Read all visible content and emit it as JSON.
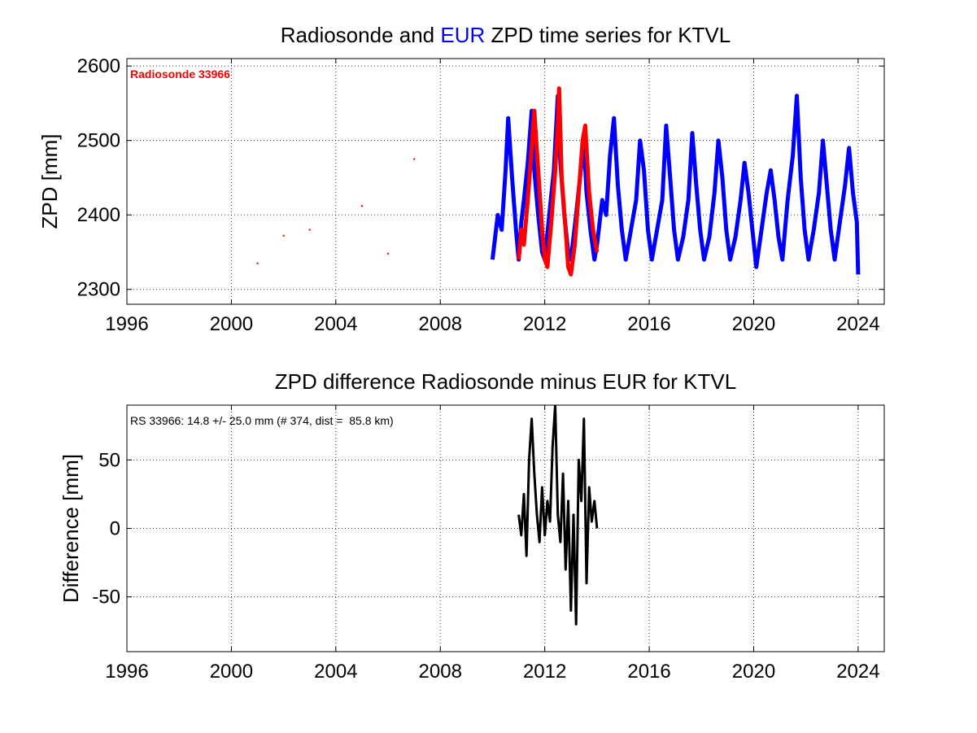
{
  "chart_data": [
    {
      "type": "line",
      "title_parts": [
        {
          "text": "Radiosonde and ",
          "color": "#000000"
        },
        {
          "text": "EUR",
          "color": "#0000ff"
        },
        {
          "text": " ZPD time series for KTVL",
          "color": "#000000"
        }
      ],
      "xlabel": "",
      "ylabel": "ZPD [mm]",
      "xlim": [
        1996,
        2025
      ],
      "ylim": [
        2280,
        2610
      ],
      "xticks": [
        1996,
        2000,
        2004,
        2008,
        2012,
        2016,
        2020,
        2024
      ],
      "yticks": [
        2300,
        2400,
        2500,
        2600
      ],
      "grid": true,
      "annotation": {
        "text": "Radiosonde 33966",
        "color": "#ff0000",
        "placement": "top-left"
      },
      "series": [
        {
          "color": "#0000ff",
          "x": [
            2010.0,
            2010.2,
            2010.35,
            2010.5,
            2010.6,
            2010.75,
            2010.9,
            2011.0,
            2011.1,
            2011.2,
            2011.35,
            2011.5,
            2011.6,
            2011.75,
            2011.9,
            2012.0,
            2012.2,
            2012.35,
            2012.5,
            2012.6,
            2012.75,
            2012.9,
            2013.0,
            2013.2,
            2013.35,
            2013.5,
            2013.6,
            2013.75,
            2013.9,
            2014.0,
            2014.2,
            2014.35,
            2014.5,
            2014.65,
            2014.8,
            2014.95,
            2015.1,
            2015.3,
            2015.5,
            2015.65,
            2015.8,
            2015.95,
            2016.1,
            2016.3,
            2016.5,
            2016.65,
            2016.8,
            2016.95,
            2017.1,
            2017.3,
            2017.5,
            2017.65,
            2017.8,
            2017.95,
            2018.1,
            2018.3,
            2018.5,
            2018.65,
            2018.8,
            2018.95,
            2019.1,
            2019.3,
            2019.5,
            2019.65,
            2019.8,
            2019.95,
            2020.1,
            2020.3,
            2020.5,
            2020.65,
            2020.8,
            2020.95,
            2021.1,
            2021.3,
            2021.5,
            2021.65,
            2021.8,
            2021.95,
            2022.1,
            2022.3,
            2022.5,
            2022.65,
            2022.8,
            2022.95,
            2023.1,
            2023.3,
            2023.5,
            2023.65,
            2023.8,
            2023.95,
            2024.0
          ],
          "y": [
            2340,
            2400,
            2380,
            2460,
            2530,
            2450,
            2380,
            2340,
            2390,
            2420,
            2470,
            2540,
            2460,
            2400,
            2350,
            2340,
            2410,
            2460,
            2560,
            2470,
            2400,
            2350,
            2340,
            2400,
            2450,
            2500,
            2430,
            2380,
            2340,
            2360,
            2420,
            2400,
            2480,
            2530,
            2440,
            2380,
            2340,
            2380,
            2420,
            2500,
            2460,
            2380,
            2340,
            2380,
            2420,
            2520,
            2450,
            2380,
            2340,
            2370,
            2420,
            2510,
            2440,
            2380,
            2340,
            2370,
            2430,
            2500,
            2450,
            2380,
            2340,
            2370,
            2420,
            2470,
            2430,
            2380,
            2330,
            2380,
            2430,
            2460,
            2420,
            2370,
            2340,
            2420,
            2480,
            2560,
            2450,
            2380,
            2340,
            2380,
            2430,
            2500,
            2440,
            2380,
            2340,
            2390,
            2440,
            2490,
            2430,
            2390,
            2320
          ]
        },
        {
          "color": "#ff0000",
          "x": [
            2011.0,
            2011.1,
            2011.2,
            2011.35,
            2011.5,
            2011.6,
            2011.75,
            2011.9,
            2012.0,
            2012.1,
            2012.25,
            2012.4,
            2012.5,
            2012.55,
            2012.65,
            2012.8,
            2012.9,
            2013.0,
            2013.15,
            2013.3,
            2013.45,
            2013.55,
            2013.7,
            2013.85,
            2014.0
          ],
          "y": [
            2340,
            2380,
            2360,
            2420,
            2490,
            2540,
            2460,
            2380,
            2340,
            2330,
            2390,
            2460,
            2520,
            2570,
            2450,
            2380,
            2330,
            2320,
            2360,
            2430,
            2500,
            2520,
            2430,
            2380,
            2350
          ]
        },
        {
          "color": "#ff0000",
          "mode": "points",
          "x": [
            2001.0,
            2002.0,
            2003.0,
            2005.0,
            2006.0,
            2007.0
          ],
          "y": [
            2335,
            2372,
            2380,
            2412,
            2348,
            2475
          ]
        }
      ]
    },
    {
      "type": "line",
      "title": "ZPD difference Radiosonde minus EUR for KTVL",
      "xlabel": "",
      "ylabel": "Difference [mm]",
      "xlim": [
        1996,
        2025
      ],
      "ylim": [
        -90,
        90
      ],
      "xticks": [
        1996,
        2000,
        2004,
        2008,
        2012,
        2016,
        2020,
        2024
      ],
      "yticks": [
        -50,
        0,
        50
      ],
      "grid": true,
      "annotation": {
        "text": "RS 33966: 14.8 +/- 25.0 mm (# 374, dist =  85.8 km)",
        "color": "#000000",
        "placement": "top-left"
      },
      "series": [
        {
          "color": "#000000",
          "x": [
            2011.0,
            2011.1,
            2011.2,
            2011.3,
            2011.4,
            2011.5,
            2011.6,
            2011.7,
            2011.8,
            2011.9,
            2012.0,
            2012.1,
            2012.2,
            2012.3,
            2012.4,
            2012.5,
            2012.6,
            2012.7,
            2012.8,
            2012.9,
            2013.0,
            2013.1,
            2013.2,
            2013.3,
            2013.4,
            2013.5,
            2013.6,
            2013.7,
            2013.8,
            2013.9,
            2014.0
          ],
          "y": [
            10,
            -5,
            25,
            -20,
            50,
            80,
            40,
            10,
            -10,
            30,
            -5,
            20,
            5,
            60,
            90,
            10,
            -10,
            40,
            -30,
            20,
            -60,
            10,
            -70,
            50,
            20,
            80,
            -40,
            30,
            5,
            20,
            0
          ]
        }
      ]
    }
  ]
}
